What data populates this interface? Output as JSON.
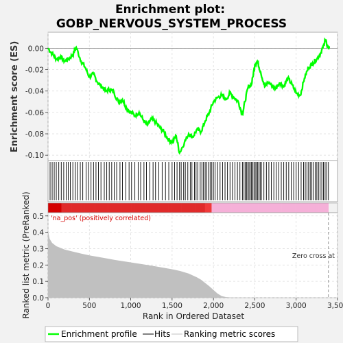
{
  "chart_data": {
    "type": "line",
    "title_line1": "Enrichment plot:",
    "title_line2": "GOBP_NERVOUS_SYSTEM_PROCESS",
    "es_ylabel": "Enrichment score (ES)",
    "metric_ylabel": "Ranked list metric (PreRanked)",
    "xlabel": "Rank in Ordered Dataset",
    "xlim": [
      0,
      3500
    ],
    "x_ticks": [
      0,
      500,
      1000,
      1500,
      2000,
      2500,
      3000,
      3500
    ],
    "x_tick_labels": [
      "0",
      "500",
      "1,000",
      "1,500",
      "2,000",
      "2,500",
      "3,000",
      "3,500"
    ],
    "es_ylim": [
      -0.105,
      0.015
    ],
    "es_ticks": [
      0.0,
      -0.02,
      -0.04,
      -0.06,
      -0.08,
      -0.1
    ],
    "es_tick_labels": [
      "0.00",
      "-0.02",
      "-0.04",
      "-0.06",
      "-0.08",
      "-0.10"
    ],
    "metric_ylim": [
      0,
      0.52
    ],
    "metric_ticks": [
      0.0,
      0.1,
      0.2,
      0.3,
      0.4,
      0.5
    ],
    "metric_tick_labels": [
      "0.0",
      "0.1",
      "0.2",
      "0.3",
      "0.4",
      "0.5"
    ],
    "es_series": {
      "name": "Enrichment profile",
      "color": "#00ff00",
      "x": [
        0,
        50,
        100,
        150,
        200,
        250,
        300,
        340,
        400,
        450,
        500,
        550,
        600,
        650,
        700,
        750,
        800,
        850,
        900,
        950,
        1000,
        1050,
        1100,
        1150,
        1200,
        1250,
        1300,
        1350,
        1400,
        1450,
        1500,
        1550,
        1590,
        1650,
        1700,
        1750,
        1800,
        1850,
        1900,
        1950,
        2000,
        2050,
        2100,
        2150,
        2200,
        2250,
        2300,
        2350,
        2380,
        2420,
        2460,
        2500,
        2530,
        2570,
        2620,
        2660,
        2700,
        2750,
        2800,
        2850,
        2900,
        2950,
        3000,
        3050,
        3100,
        3150,
        3200,
        3250,
        3300,
        3330,
        3350,
        3380,
        3400
      ],
      "y": [
        0.0,
        -0.005,
        -0.01,
        -0.008,
        -0.012,
        -0.01,
        -0.006,
        0.001,
        -0.012,
        -0.018,
        -0.027,
        -0.024,
        -0.032,
        -0.036,
        -0.04,
        -0.038,
        -0.042,
        -0.05,
        -0.048,
        -0.056,
        -0.06,
        -0.063,
        -0.06,
        -0.067,
        -0.072,
        -0.066,
        -0.069,
        -0.074,
        -0.078,
        -0.085,
        -0.088,
        -0.082,
        -0.098,
        -0.088,
        -0.08,
        -0.083,
        -0.076,
        -0.078,
        -0.068,
        -0.06,
        -0.05,
        -0.046,
        -0.044,
        -0.048,
        -0.042,
        -0.046,
        -0.05,
        -0.062,
        -0.05,
        -0.036,
        -0.034,
        -0.016,
        -0.012,
        -0.022,
        -0.036,
        -0.032,
        -0.034,
        -0.038,
        -0.032,
        -0.036,
        -0.028,
        -0.034,
        -0.042,
        -0.044,
        -0.028,
        -0.018,
        -0.014,
        -0.01,
        -0.004,
        0.002,
        0.008,
        0.002,
        0.0
      ]
    },
    "hits_name": "Hits",
    "hits": [
      25,
      50,
      75,
      100,
      130,
      160,
      190,
      220,
      245,
      270,
      300,
      330,
      355,
      390,
      420,
      460,
      490,
      520,
      550,
      580,
      610,
      640,
      680,
      710,
      740,
      770,
      800,
      830,
      870,
      900,
      940,
      980,
      1010,
      1050,
      1090,
      1120,
      1160,
      1190,
      1230,
      1270,
      1300,
      1340,
      1380,
      1420,
      1460,
      1500,
      1530,
      1560,
      1590,
      1610,
      1640,
      1660,
      1690,
      1720,
      1740,
      1770,
      1790,
      1810,
      1840,
      1860,
      1880,
      1900,
      1920,
      1940,
      1960,
      1980,
      2000,
      2020,
      2050,
      2080,
      2110,
      2140,
      2170,
      2200,
      2230,
      2260,
      2290,
      2320,
      2350,
      2370,
      2385,
      2400,
      2415,
      2430,
      2445,
      2460,
      2475,
      2490,
      2505,
      2520,
      2535,
      2550,
      2565,
      2580,
      2610,
      2640,
      2670,
      2700,
      2730,
      2760,
      2790,
      2820,
      2850,
      2880,
      2910,
      2940,
      2970,
      3000,
      3030,
      3060,
      3090,
      3110,
      3130,
      3150,
      3170,
      3190,
      3210,
      3230,
      3250,
      3270,
      3290,
      3310,
      3330,
      3350,
      3370,
      3390
    ],
    "metric_series": {
      "name": "Ranking metric scores",
      "color": "#c0c0c0",
      "x": [
        0,
        20,
        50,
        100,
        200,
        300,
        400,
        500,
        600,
        700,
        800,
        900,
        1000,
        1100,
        1200,
        1300,
        1400,
        1500,
        1600,
        1700,
        1800,
        1850,
        1900,
        1950,
        2000,
        2050,
        2100,
        2150,
        2200,
        2300,
        2500,
        3000,
        3400
      ],
      "y": [
        0.41,
        0.36,
        0.335,
        0.315,
        0.295,
        0.282,
        0.27,
        0.259,
        0.25,
        0.241,
        0.232,
        0.224,
        0.216,
        0.208,
        0.2,
        0.192,
        0.183,
        0.174,
        0.163,
        0.148,
        0.125,
        0.11,
        0.09,
        0.07,
        0.048,
        0.025,
        0.01,
        0.004,
        0.002,
        0.0,
        0.0,
        0.0,
        0.0
      ]
    },
    "pos_label": "'na_pos' (positively correlated)",
    "zero_cross_label": "Zero cross at",
    "zero_cross_x": 3390,
    "legend_placement": "bottom",
    "grid": true
  }
}
